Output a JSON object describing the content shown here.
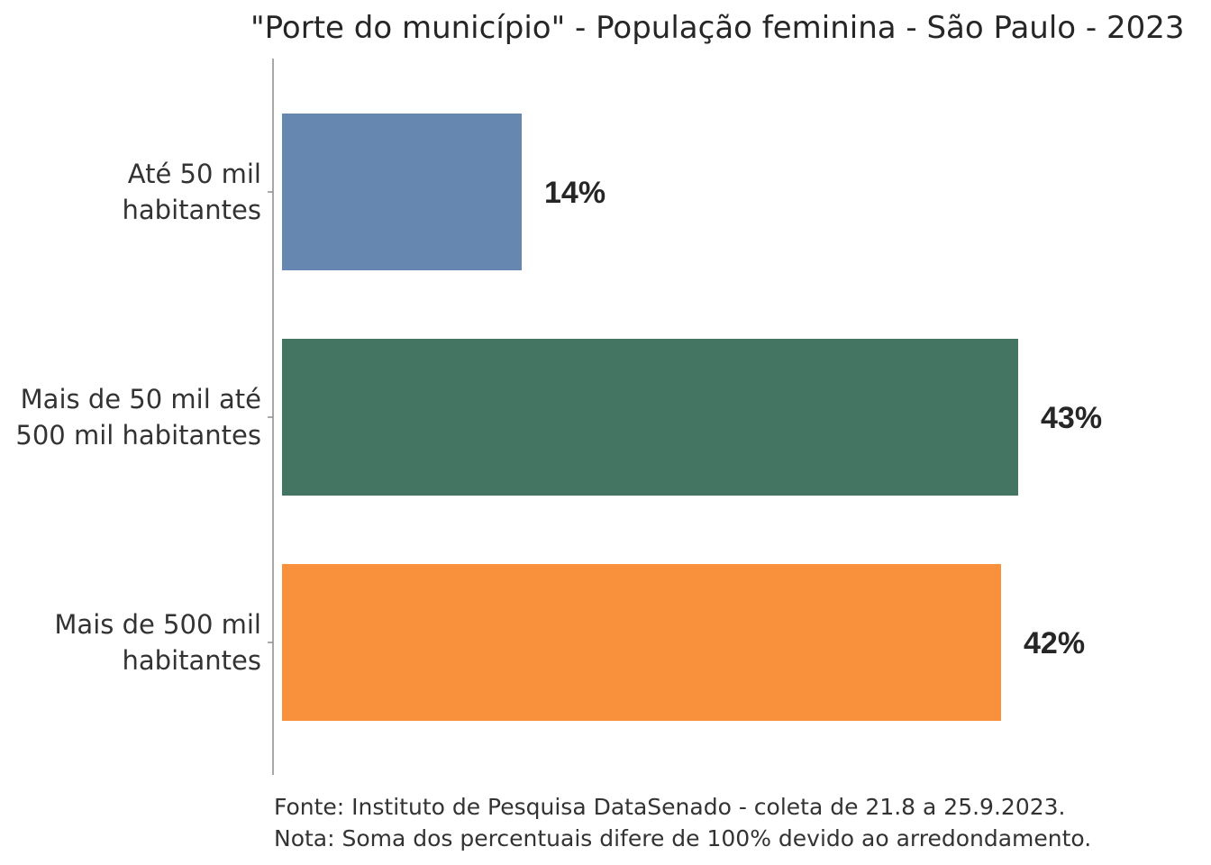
{
  "chart_data": {
    "type": "bar",
    "orientation": "horizontal",
    "title": "\"Porte do município\" - População feminina - São Paulo - 2023",
    "categories": [
      [
        "Até 50 mil",
        "habitantes"
      ],
      [
        "Mais de 50 mil até",
        "500 mil habitantes"
      ],
      [
        "Mais de 500 mil",
        "habitantes"
      ]
    ],
    "values": [
      14,
      43,
      42
    ],
    "value_labels": [
      "14%",
      "43%",
      "42%"
    ],
    "colors": [
      "#6688b0",
      "#447563",
      "#f9913c"
    ],
    "xlabel": "",
    "ylabel": "",
    "xlim": [
      0,
      54
    ],
    "grid": false,
    "legend": "none"
  },
  "footer": {
    "source": "Fonte: Instituto de Pesquisa DataSenado - coleta de 21.8 a 25.9.2023.",
    "note": "Nota: Soma dos percentuais difere de 100% devido ao arredondamento."
  }
}
